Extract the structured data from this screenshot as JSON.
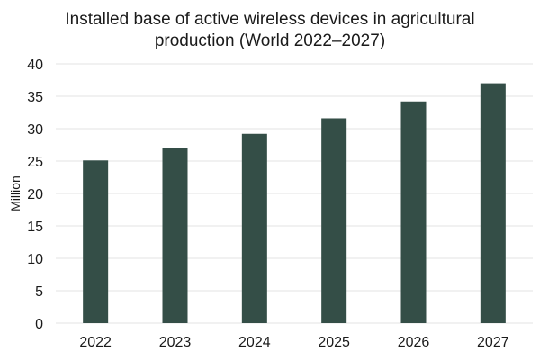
{
  "chart_data": {
    "type": "bar",
    "title": "Installed base of active wireless devices in agricultural production (World 2022–2027)",
    "xlabel": "",
    "ylabel": "Million",
    "categories": [
      "2022",
      "2023",
      "2024",
      "2025",
      "2026",
      "2027"
    ],
    "values": [
      25.1,
      27.0,
      29.2,
      31.6,
      34.2,
      37.0
    ],
    "ylim": [
      0,
      40
    ],
    "yticks": [
      0,
      5,
      10,
      15,
      20,
      25,
      30,
      35,
      40
    ],
    "grid": true,
    "legend": "none",
    "bar_color": "#344e47",
    "grid_color": "#e3e3e3"
  }
}
